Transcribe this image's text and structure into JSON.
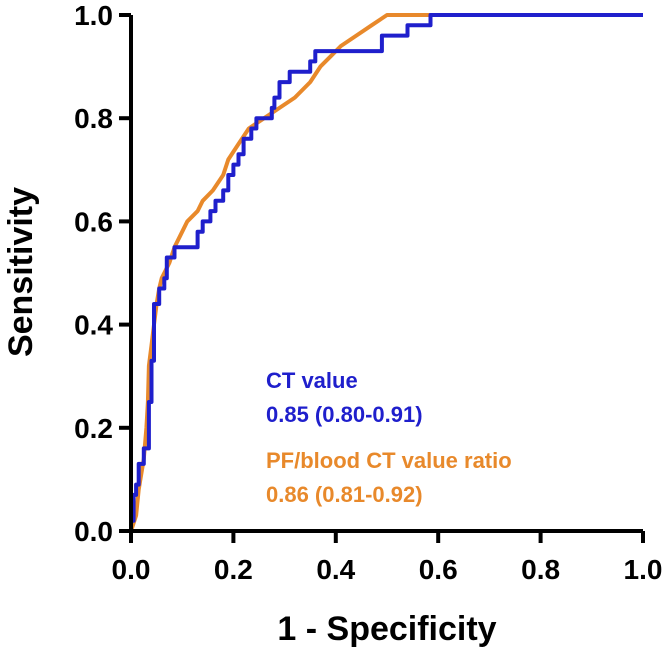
{
  "chart_data": {
    "type": "line",
    "title": "",
    "xlabel": "1 - Specificity",
    "ylabel": "Sensitivity",
    "xlim": [
      0,
      1
    ],
    "ylim": [
      0,
      1
    ],
    "x_ticks": [
      "0.0",
      "0.2",
      "0.4",
      "0.6",
      "0.8",
      "1.0"
    ],
    "y_ticks": [
      "0.0",
      "0.2",
      "0.4",
      "0.6",
      "0.8",
      "1.0"
    ],
    "grid": false,
    "legend_position": "bottom-right (inside plot)",
    "series": [
      {
        "name": "CT value",
        "auc_label": "0.85 (0.80-0.91)",
        "color": "#1f1fcc",
        "points": [
          [
            0,
            0
          ],
          [
            0,
            0.02
          ],
          [
            0.005,
            0.02
          ],
          [
            0.005,
            0.07
          ],
          [
            0.01,
            0.07
          ],
          [
            0.01,
            0.09
          ],
          [
            0.015,
            0.09
          ],
          [
            0.015,
            0.13
          ],
          [
            0.025,
            0.13
          ],
          [
            0.025,
            0.16
          ],
          [
            0.035,
            0.16
          ],
          [
            0.035,
            0.25
          ],
          [
            0.04,
            0.25
          ],
          [
            0.04,
            0.33
          ],
          [
            0.045,
            0.33
          ],
          [
            0.045,
            0.44
          ],
          [
            0.055,
            0.44
          ],
          [
            0.055,
            0.47
          ],
          [
            0.065,
            0.47
          ],
          [
            0.065,
            0.49
          ],
          [
            0.07,
            0.49
          ],
          [
            0.07,
            0.53
          ],
          [
            0.085,
            0.53
          ],
          [
            0.085,
            0.55
          ],
          [
            0.13,
            0.55
          ],
          [
            0.13,
            0.58
          ],
          [
            0.14,
            0.58
          ],
          [
            0.14,
            0.6
          ],
          [
            0.155,
            0.6
          ],
          [
            0.155,
            0.62
          ],
          [
            0.165,
            0.62
          ],
          [
            0.165,
            0.64
          ],
          [
            0.18,
            0.64
          ],
          [
            0.18,
            0.66
          ],
          [
            0.19,
            0.66
          ],
          [
            0.19,
            0.69
          ],
          [
            0.2,
            0.69
          ],
          [
            0.2,
            0.71
          ],
          [
            0.21,
            0.71
          ],
          [
            0.21,
            0.73
          ],
          [
            0.22,
            0.73
          ],
          [
            0.22,
            0.76
          ],
          [
            0.235,
            0.76
          ],
          [
            0.235,
            0.78
          ],
          [
            0.245,
            0.78
          ],
          [
            0.245,
            0.8
          ],
          [
            0.275,
            0.8
          ],
          [
            0.275,
            0.82
          ],
          [
            0.28,
            0.82
          ],
          [
            0.28,
            0.84
          ],
          [
            0.29,
            0.84
          ],
          [
            0.29,
            0.87
          ],
          [
            0.31,
            0.87
          ],
          [
            0.31,
            0.89
          ],
          [
            0.35,
            0.89
          ],
          [
            0.35,
            0.91
          ],
          [
            0.36,
            0.91
          ],
          [
            0.36,
            0.93
          ],
          [
            0.49,
            0.93
          ],
          [
            0.49,
            0.96
          ],
          [
            0.54,
            0.96
          ],
          [
            0.54,
            0.98
          ],
          [
            0.585,
            0.98
          ],
          [
            0.585,
            1.0
          ],
          [
            1.0,
            1.0
          ]
        ]
      },
      {
        "name": "PF/blood CT value ratio",
        "auc_label": "0.86 (0.81-0.92)",
        "color": "#e8892b",
        "points": [
          [
            0,
            0
          ],
          [
            0.01,
            0.03
          ],
          [
            0.015,
            0.08
          ],
          [
            0.025,
            0.14
          ],
          [
            0.03,
            0.2
          ],
          [
            0.033,
            0.25
          ],
          [
            0.035,
            0.32
          ],
          [
            0.04,
            0.36
          ],
          [
            0.045,
            0.4
          ],
          [
            0.05,
            0.44
          ],
          [
            0.055,
            0.47
          ],
          [
            0.06,
            0.49
          ],
          [
            0.065,
            0.5
          ],
          [
            0.075,
            0.52
          ],
          [
            0.085,
            0.55
          ],
          [
            0.1,
            0.58
          ],
          [
            0.11,
            0.6
          ],
          [
            0.13,
            0.62
          ],
          [
            0.14,
            0.64
          ],
          [
            0.16,
            0.66
          ],
          [
            0.18,
            0.69
          ],
          [
            0.19,
            0.72
          ],
          [
            0.21,
            0.75
          ],
          [
            0.23,
            0.78
          ],
          [
            0.26,
            0.8
          ],
          [
            0.29,
            0.82
          ],
          [
            0.32,
            0.84
          ],
          [
            0.35,
            0.87
          ],
          [
            0.37,
            0.9
          ],
          [
            0.39,
            0.92
          ],
          [
            0.41,
            0.94
          ],
          [
            0.44,
            0.96
          ],
          [
            0.47,
            0.98
          ],
          [
            0.5,
            1.0
          ],
          [
            1.0,
            1.0
          ]
        ]
      }
    ]
  }
}
